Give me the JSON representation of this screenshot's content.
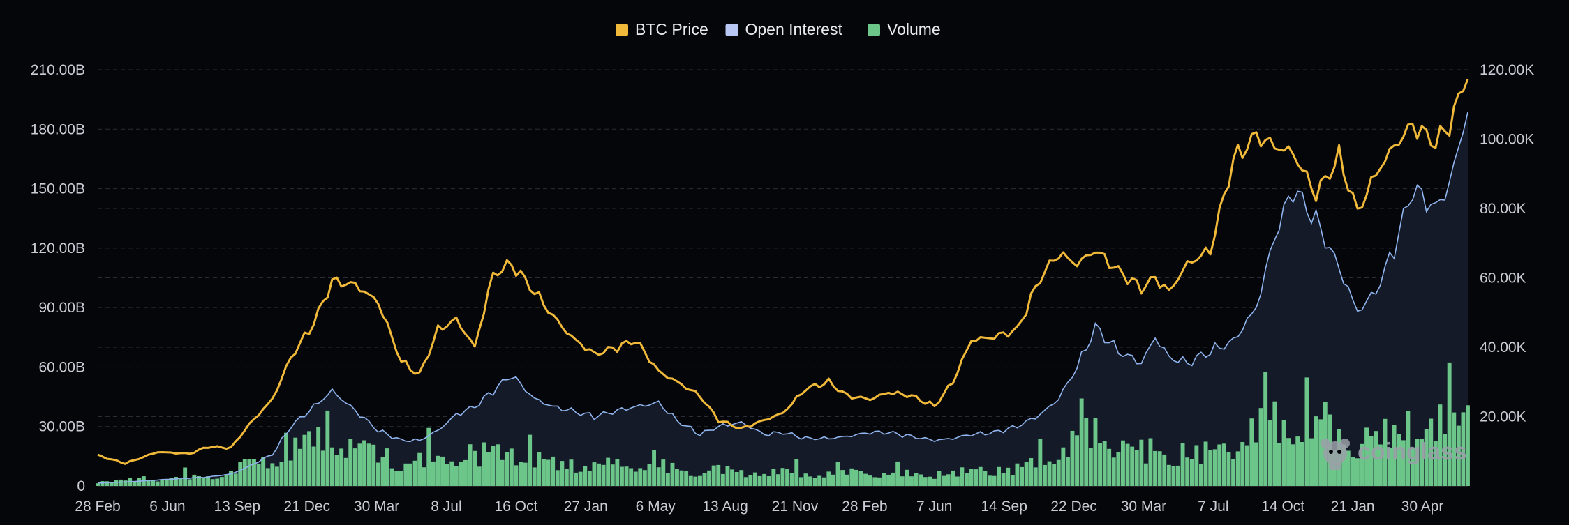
{
  "colors": {
    "background": "#05060a",
    "grid": "#2a2d35",
    "axis_text": "#c9ccd4",
    "btc_price": "#f0b93a",
    "open_interest": "#8fb4ee",
    "open_interest_fill": "#141a28",
    "volume": "#6cc68a",
    "watermark": "#9aa0a8"
  },
  "watermark": {
    "text": "coinglass"
  },
  "chart_data": {
    "type": "line",
    "legend_placement": "top-center",
    "grid": "horizontal-dashed",
    "legend": [
      {
        "key": "btc_price",
        "label": "BTC Price",
        "color": "#f0b93a"
      },
      {
        "key": "open_interest",
        "label": "Open Interest",
        "color": "#b9c7f5"
      },
      {
        "key": "volume",
        "label": "Volume",
        "color": "#6cc68a"
      }
    ],
    "x_tick_labels": [
      "28 Feb",
      "6 Jun",
      "13 Sep",
      "21 Dec",
      "30 Mar",
      "8 Jul",
      "16 Oct",
      "27 Jan",
      "6 May",
      "13 Aug",
      "21 Nov",
      "28 Feb",
      "7 Jun",
      "14 Sep",
      "22 Dec",
      "30 Mar",
      "7 Jul",
      "14 Oct",
      "21 Jan",
      "30 Apr"
    ],
    "y_left": {
      "range": [
        0,
        210
      ],
      "unit": "B",
      "ticks": [
        0,
        30,
        60,
        90,
        120,
        150,
        180,
        210
      ],
      "tick_labels": [
        "0",
        "30.00B",
        "60.00B",
        "90.00B",
        "120.00B",
        "150.00B",
        "180.00B",
        "210.00B"
      ]
    },
    "y_right": {
      "range": [
        0,
        120
      ],
      "unit": "K",
      "ticks": [
        20,
        40,
        60,
        80,
        100,
        120
      ],
      "tick_labels": [
        "20.00K",
        "40.00K",
        "60.00K",
        "80.00K",
        "100.00K",
        "120.00K"
      ]
    },
    "x_index": [
      0,
      6,
      13,
      20,
      24,
      29,
      33,
      38,
      42,
      47,
      51,
      56,
      61,
      66,
      70,
      74,
      78,
      82,
      86,
      90,
      95,
      99,
      103,
      108,
      113,
      117,
      122,
      126,
      131,
      135,
      140,
      145,
      149,
      154,
      159,
      163,
      168,
      172,
      177,
      182,
      186,
      190,
      195,
      200,
      205,
      209,
      213,
      217,
      222,
      227,
      230,
      233,
      237,
      242,
      247,
      252,
      256,
      260,
      265,
      270,
      274,
      278,
      282,
      286,
      291,
      294,
      298
    ],
    "series": [
      {
        "name": "BTC Price",
        "axis": "right",
        "values": [
          8.8,
          6.5,
          9.8,
          9.3,
          11.3,
          11.0,
          17.8,
          25.0,
          37.0,
          47.0,
          59.0,
          58.0,
          53.0,
          36.0,
          32.0,
          45.0,
          48.0,
          40.0,
          61.0,
          64.0,
          56.0,
          49.0,
          43.0,
          38.0,
          40.0,
          42.0,
          33.0,
          30.0,
          26.0,
          19.0,
          16.5,
          19.0,
          21.0,
          28.0,
          30.0,
          26.0,
          25.0,
          27.0,
          26.0,
          23.0,
          30.0,
          42.0,
          43.0,
          45.0,
          60.0,
          67.0,
          64.0,
          68.0,
          62.0,
          57.0,
          60.0,
          56.0,
          64.0,
          68.0,
          94.0,
          101.0,
          98.0,
          96.0,
          84.0,
          95.0,
          79.0,
          90.0,
          98.0,
          104.0,
          99.0,
          104.0,
          119.0
        ]
      },
      {
        "name": "Open Interest",
        "axis": "left",
        "values": [
          1.5,
          2.0,
          3.0,
          4.0,
          4.5,
          6.0,
          10.0,
          16.0,
          30.0,
          40.0,
          48.0,
          38.0,
          28.0,
          23.0,
          23.0,
          28.0,
          36.0,
          40.0,
          48.0,
          56.0,
          44.0,
          40.0,
          38.0,
          35.0,
          38.0,
          40.0,
          42.0,
          33.0,
          26.0,
          30.0,
          32.0,
          26.0,
          27.0,
          24.0,
          24.0,
          25.0,
          27.0,
          27.0,
          25.0,
          23.0,
          24.0,
          26.0,
          27.0,
          30.0,
          36.0,
          44.0,
          60.0,
          80.0,
          68.0,
          62.0,
          75.0,
          65.0,
          62.0,
          68.0,
          73.0,
          90.0,
          126.0,
          150.0,
          134.0,
          110.0,
          88.0,
          98.0,
          120.0,
          150.0,
          140.0,
          152.0,
          190.0
        ]
      },
      {
        "name": "Volume",
        "axis": "left",
        "values": [
          3.0,
          4.0,
          5.0,
          6.0,
          7.0,
          10.0,
          15.0,
          20.0,
          26.0,
          32.0,
          36.0,
          28.0,
          20.0,
          16.0,
          18.0,
          19.0,
          22.0,
          20.0,
          25.0,
          24.0,
          19.0,
          16.0,
          15.0,
          14.0,
          15.0,
          16.0,
          14.0,
          12.0,
          10.0,
          11.0,
          10.0,
          9.0,
          10.0,
          9.0,
          9.0,
          9.0,
          10.0,
          9.0,
          8.0,
          8.0,
          9.0,
          10.0,
          11.0,
          12.0,
          18.0,
          26.0,
          34.0,
          38.0,
          30.0,
          24.0,
          26.0,
          22.0,
          20.0,
          24.0,
          30.0,
          40.0,
          48.0,
          46.0,
          40.0,
          36.0,
          30.0,
          32.0,
          36.0,
          42.0,
          40.0,
          44.0,
          55.0
        ]
      }
    ]
  }
}
